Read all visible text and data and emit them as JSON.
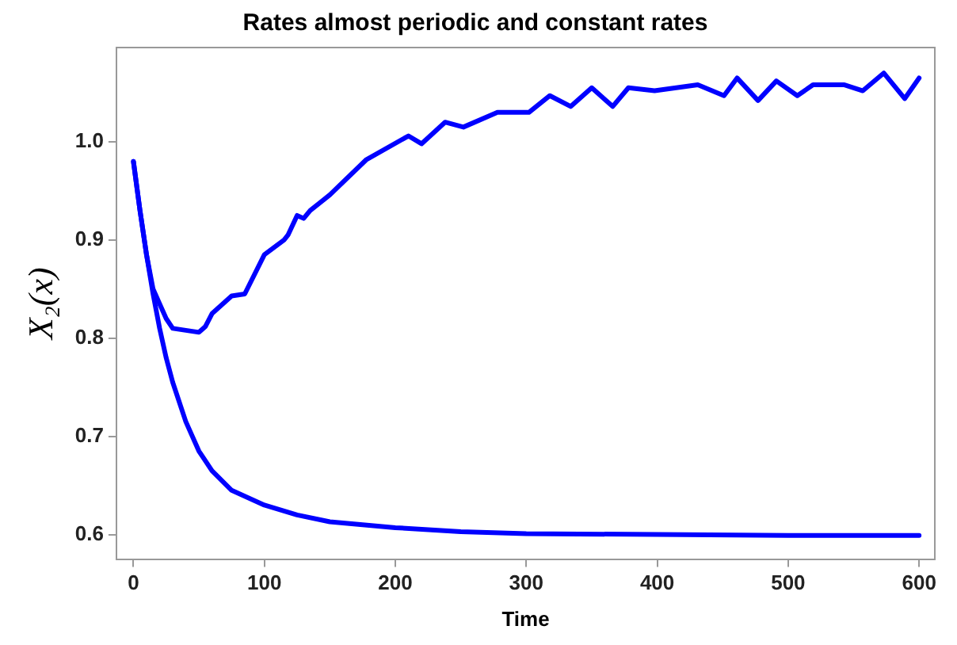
{
  "chart_data": {
    "type": "line",
    "title": "Rates almost periodic and constant rates",
    "xlabel": "Time",
    "ylabel": "X₂(x)",
    "xlim": [
      -13,
      612
    ],
    "xticks": [
      0,
      100,
      200,
      300,
      400,
      500,
      600
    ],
    "ylim": [
      0.575,
      1.096
    ],
    "yticks": [
      {
        "value": 0.6,
        "label": "0.6"
      },
      {
        "value": 0.7,
        "label": "0.7"
      },
      {
        "value": 0.8,
        "label": "0.8"
      },
      {
        "value": 0.9,
        "label": "0.9"
      },
      {
        "value": 1.0,
        "label": "1.0"
      }
    ],
    "grid": false,
    "legend": false,
    "marker": "none",
    "line_style": "solid",
    "series": [
      {
        "color": "#0000ff",
        "x": [
          0,
          5,
          10,
          15,
          20,
          25,
          30,
          40,
          50,
          55,
          60,
          75,
          85,
          100,
          115,
          118,
          125,
          130,
          135,
          150,
          178,
          210,
          220,
          238,
          252,
          278,
          302,
          318,
          334,
          350,
          366,
          378,
          398,
          431,
          451,
          461,
          477,
          491,
          507,
          519,
          543,
          557,
          573,
          589,
          600
        ],
        "values": [
          0.98,
          0.93,
          0.885,
          0.85,
          0.835,
          0.82,
          0.81,
          0.808,
          0.806,
          0.812,
          0.825,
          0.843,
          0.845,
          0.885,
          0.9,
          0.905,
          0.925,
          0.922,
          0.93,
          0.946,
          0.982,
          1.006,
          0.998,
          1.02,
          1.015,
          1.03,
          1.03,
          1.047,
          1.036,
          1.055,
          1.036,
          1.055,
          1.052,
          1.058,
          1.047,
          1.065,
          1.042,
          1.062,
          1.047,
          1.058,
          1.058,
          1.052,
          1.07,
          1.044,
          1.065
        ]
      },
      {
        "color": "#0000ff",
        "x": [
          0,
          5,
          10,
          15,
          20,
          25,
          30,
          40,
          50,
          60,
          75,
          100,
          125,
          150,
          200,
          250,
          300,
          400,
          500,
          600
        ],
        "values": [
          0.98,
          0.93,
          0.885,
          0.845,
          0.81,
          0.78,
          0.755,
          0.715,
          0.685,
          0.665,
          0.645,
          0.63,
          0.62,
          0.613,
          0.607,
          0.603,
          0.601,
          0.6,
          0.599,
          0.599
        ]
      }
    ]
  }
}
